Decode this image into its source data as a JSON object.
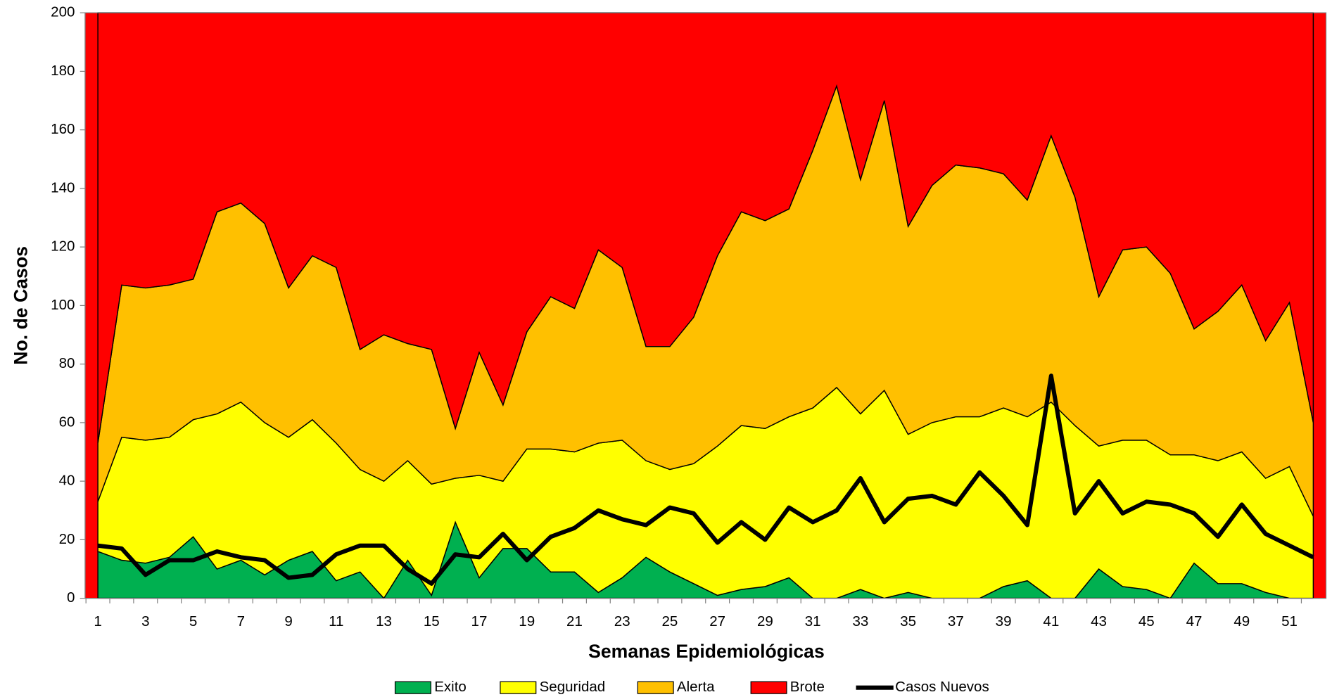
{
  "chart_data": {
    "type": "stacked-area-line",
    "xlabel": "Semanas Epidemiológicas",
    "ylabel": "No. de Casos",
    "categories": [
      1,
      null,
      3,
      null,
      5,
      null,
      7,
      null,
      9,
      null,
      11,
      null,
      13,
      null,
      15,
      null,
      17,
      null,
      19,
      null,
      21,
      null,
      23,
      null,
      25,
      null,
      27,
      null,
      29,
      null,
      31,
      null,
      33,
      null,
      35,
      null,
      37,
      null,
      39,
      null,
      41,
      null,
      43,
      null,
      45,
      null,
      47,
      null,
      49,
      null,
      51,
      null
    ],
    "ylim": [
      0,
      200
    ],
    "yticks": [
      0,
      20,
      40,
      60,
      80,
      100,
      120,
      140,
      160,
      180,
      200
    ],
    "series": [
      {
        "name": "Exito",
        "color": "#00b050",
        "kind": "area",
        "values": [
          16,
          13,
          12,
          14,
          21,
          10,
          13,
          8,
          13,
          16,
          6,
          9,
          0,
          13,
          1,
          26,
          7,
          17,
          17,
          9,
          9,
          2,
          7,
          14,
          9,
          5,
          1,
          3,
          4,
          7,
          0,
          0,
          3,
          0,
          2,
          0,
          0,
          0,
          4,
          6,
          0,
          0,
          10,
          4,
          3,
          0,
          12,
          5,
          5,
          2,
          0,
          0
        ]
      },
      {
        "name": "Seguridad",
        "color": "#ffff00",
        "kind": "area",
        "values": [
          17,
          42,
          42,
          41,
          40,
          53,
          54,
          52,
          42,
          45,
          47,
          35,
          40,
          34,
          38,
          15,
          35,
          23,
          34,
          42,
          41,
          51,
          47,
          33,
          35,
          41,
          51,
          56,
          54,
          55,
          65,
          72,
          60,
          71,
          54,
          60,
          62,
          62,
          61,
          56,
          67,
          59,
          42,
          50,
          51,
          49,
          37,
          42,
          45,
          39,
          45,
          28
        ]
      },
      {
        "name": "Alerta",
        "color": "#ffc000",
        "kind": "area",
        "values": [
          20,
          52,
          52,
          52,
          48,
          69,
          68,
          68,
          51,
          56,
          60,
          41,
          50,
          40,
          46,
          17,
          42,
          26,
          40,
          52,
          49,
          66,
          59,
          39,
          42,
          50,
          65,
          73,
          71,
          71,
          88,
          103,
          80,
          99,
          71,
          81,
          86,
          85,
          80,
          74,
          91,
          78,
          51,
          65,
          66,
          62,
          43,
          51,
          57,
          47,
          56,
          32
        ]
      },
      {
        "name": "Brote",
        "color": "#ff0000",
        "kind": "area",
        "values": [
          147,
          93,
          94,
          93,
          91,
          68,
          65,
          72,
          94,
          83,
          87,
          115,
          110,
          113,
          115,
          142,
          116,
          134,
          109,
          97,
          101,
          81,
          87,
          114,
          114,
          104,
          83,
          68,
          71,
          67,
          47,
          25,
          57,
          30,
          73,
          59,
          52,
          53,
          55,
          64,
          42,
          63,
          97,
          81,
          80,
          89,
          108,
          102,
          93,
          112,
          99,
          140
        ]
      },
      {
        "name": "Casos Nuevos",
        "color": "#000000",
        "kind": "line",
        "values": [
          18,
          17,
          8,
          13,
          13,
          16,
          14,
          13,
          7,
          8,
          15,
          18,
          18,
          10,
          5,
          15,
          14,
          22,
          13,
          21,
          24,
          30,
          27,
          25,
          31,
          29,
          19,
          26,
          20,
          31,
          26,
          30,
          41,
          26,
          34,
          35,
          32,
          43,
          35,
          25,
          76,
          29,
          40,
          29,
          33,
          32,
          29,
          21,
          32,
          22,
          18,
          14
        ]
      }
    ]
  }
}
